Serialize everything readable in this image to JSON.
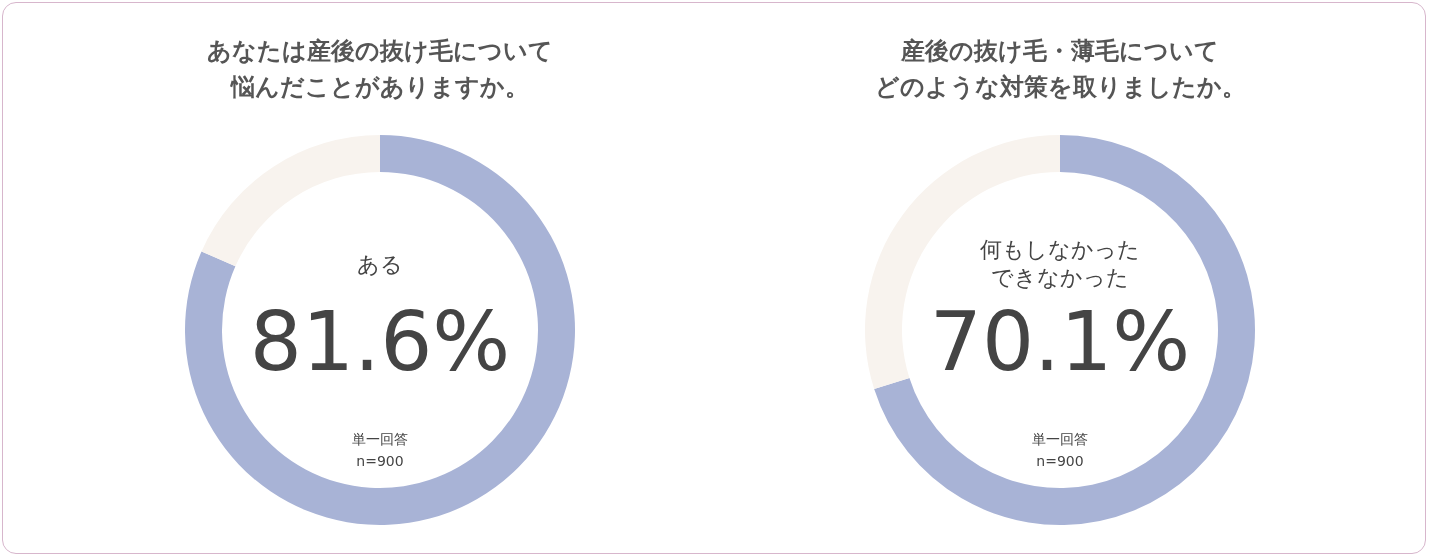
{
  "chart_data": [
    {
      "type": "donut",
      "title": "あなたは産後の抜け毛について悩んだことがありますか。",
      "categories": [
        "ある",
        null
      ],
      "values": [
        81.6,
        18.4
      ],
      "colors": [
        "#a8b3d6",
        "#f8f3ee"
      ],
      "value_labels": [
        "81.6%",
        null
      ],
      "annotations": [
        "単一回答",
        "n=900"
      ],
      "legend": false
    },
    {
      "type": "donut",
      "title": "産後の抜け毛・薄毛についてどのような対策を取りましたか。",
      "categories": [
        "何もしなかったできなかった",
        null
      ],
      "values": [
        70.1,
        29.9
      ],
      "colors": [
        "#a8b3d6",
        "#f8f3ee"
      ],
      "value_labels": [
        "70.1%",
        null
      ],
      "annotations": [
        "単一回答",
        "n=900"
      ],
      "legend": false
    }
  ]
}
